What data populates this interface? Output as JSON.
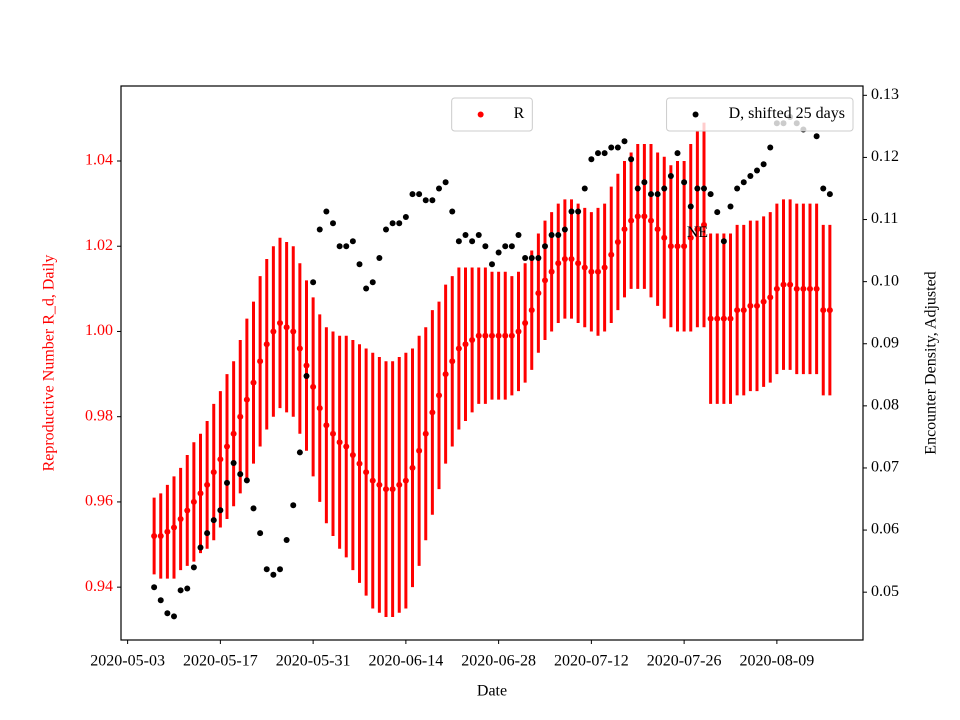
{
  "chart_data": {
    "type": "scatter",
    "x_label": "Date",
    "y_label": "Reproductive Number R_d, Daily",
    "y2_label": "Encounter Density, Adjusted",
    "y_label_color": "#ff0000",
    "annotation": "NE",
    "annotation_x": "2020-07-28",
    "annotation_y": 1.023,
    "xlim": [
      "2020-05-02",
      "2020-08-22"
    ],
    "xticks": [
      "2020-05-03",
      "2020-05-17",
      "2020-05-31",
      "2020-06-14",
      "2020-06-28",
      "2020-07-12",
      "2020-07-26",
      "2020-08-09"
    ],
    "ylim": [
      0.9276,
      1.0576
    ],
    "yticks": [
      0.94,
      0.96,
      0.98,
      {
        "value": 1.0,
        "label": "1.00"
      },
      1.02,
      1.04
    ],
    "y2lim": [
      0.0423,
      0.1315
    ],
    "y2ticks": [
      0.05,
      0.06,
      0.07,
      0.08,
      0.09,
      {
        "value": 0.1,
        "label": "0.10"
      },
      0.11,
      0.12,
      0.13
    ],
    "x": [
      "2020-05-07",
      "2020-05-08",
      "2020-05-09",
      "2020-05-10",
      "2020-05-11",
      "2020-05-12",
      "2020-05-13",
      "2020-05-14",
      "2020-05-15",
      "2020-05-16",
      "2020-05-17",
      "2020-05-18",
      "2020-05-19",
      "2020-05-20",
      "2020-05-21",
      "2020-05-22",
      "2020-05-23",
      "2020-05-24",
      "2020-05-25",
      "2020-05-26",
      "2020-05-27",
      "2020-05-28",
      "2020-05-29",
      "2020-05-30",
      "2020-05-31",
      "2020-06-01",
      "2020-06-02",
      "2020-06-03",
      "2020-06-04",
      "2020-06-05",
      "2020-06-06",
      "2020-06-07",
      "2020-06-08",
      "2020-06-09",
      "2020-06-10",
      "2020-06-11",
      "2020-06-12",
      "2020-06-13",
      "2020-06-14",
      "2020-06-15",
      "2020-06-16",
      "2020-06-17",
      "2020-06-18",
      "2020-06-19",
      "2020-06-20",
      "2020-06-21",
      "2020-06-22",
      "2020-06-23",
      "2020-06-24",
      "2020-06-25",
      "2020-06-26",
      "2020-06-27",
      "2020-06-28",
      "2020-06-29",
      "2020-06-30",
      "2020-07-01",
      "2020-07-02",
      "2020-07-03",
      "2020-07-04",
      "2020-07-05",
      "2020-07-06",
      "2020-07-07",
      "2020-07-08",
      "2020-07-09",
      "2020-07-10",
      "2020-07-11",
      "2020-07-12",
      "2020-07-13",
      "2020-07-14",
      "2020-07-15",
      "2020-07-16",
      "2020-07-17",
      "2020-07-18",
      "2020-07-19",
      "2020-07-20",
      "2020-07-21",
      "2020-07-22",
      "2020-07-23",
      "2020-07-24",
      "2020-07-25",
      "2020-07-26",
      "2020-07-27",
      "2020-07-28",
      "2020-07-29",
      "2020-07-30",
      "2020-07-31",
      "2020-08-01",
      "2020-08-02",
      "2020-08-03",
      "2020-08-04",
      "2020-08-05",
      "2020-08-06",
      "2020-08-07",
      "2020-08-08",
      "2020-08-09",
      "2020-08-10",
      "2020-08-11",
      "2020-08-12",
      "2020-08-13",
      "2020-08-14",
      "2020-08-15",
      "2020-08-16",
      "2020-08-17"
    ],
    "series": [
      {
        "name": "R",
        "color": "#ff0000",
        "legend_loc": "upper center",
        "values": [
          0.952,
          0.952,
          0.953,
          0.954,
          0.956,
          0.958,
          0.96,
          0.962,
          0.964,
          0.967,
          0.97,
          0.973,
          0.976,
          0.98,
          0.984,
          0.988,
          0.993,
          0.997,
          1.0,
          1.002,
          1.001,
          1.0,
          0.996,
          0.992,
          0.987,
          0.982,
          0.978,
          0.976,
          0.974,
          0.973,
          0.971,
          0.969,
          0.967,
          0.965,
          0.964,
          0.963,
          0.963,
          0.964,
          0.965,
          0.968,
          0.972,
          0.976,
          0.981,
          0.985,
          0.99,
          0.993,
          0.996,
          0.997,
          0.998,
          0.999,
          0.999,
          0.999,
          0.999,
          0.999,
          0.999,
          1.0,
          1.002,
          1.005,
          1.009,
          1.012,
          1.014,
          1.016,
          1.017,
          1.017,
          1.016,
          1.015,
          1.014,
          1.014,
          1.015,
          1.018,
          1.021,
          1.024,
          1.026,
          1.027,
          1.027,
          1.026,
          1.024,
          1.022,
          1.02,
          1.02,
          1.02,
          1.022,
          1.024,
          1.025,
          1.003,
          1.003,
          1.003,
          1.003,
          1.005,
          1.005,
          1.006,
          1.006,
          1.007,
          1.008,
          1.01,
          1.011,
          1.011,
          1.01,
          1.01,
          1.01,
          1.01,
          1.005,
          1.005
        ],
        "errors": [
          0.009,
          0.01,
          0.011,
          0.012,
          0.012,
          0.013,
          0.014,
          0.014,
          0.015,
          0.016,
          0.016,
          0.017,
          0.017,
          0.018,
          0.019,
          0.019,
          0.02,
          0.02,
          0.02,
          0.02,
          0.02,
          0.02,
          0.02,
          0.02,
          0.021,
          0.022,
          0.023,
          0.024,
          0.025,
          0.026,
          0.027,
          0.028,
          0.029,
          0.03,
          0.03,
          0.03,
          0.03,
          0.03,
          0.03,
          0.028,
          0.027,
          0.025,
          0.024,
          0.022,
          0.021,
          0.02,
          0.019,
          0.018,
          0.017,
          0.016,
          0.016,
          0.015,
          0.015,
          0.015,
          0.014,
          0.014,
          0.014,
          0.014,
          0.014,
          0.014,
          0.014,
          0.014,
          0.014,
          0.014,
          0.014,
          0.014,
          0.014,
          0.015,
          0.015,
          0.016,
          0.016,
          0.016,
          0.016,
          0.017,
          0.017,
          0.018,
          0.018,
          0.019,
          0.019,
          0.02,
          0.02,
          0.022,
          0.023,
          0.024,
          0.02,
          0.02,
          0.02,
          0.02,
          0.02,
          0.02,
          0.02,
          0.02,
          0.02,
          0.02,
          0.02,
          0.02,
          0.02,
          0.02,
          0.02,
          0.02,
          0.02,
          0.02,
          0.02
        ]
      },
      {
        "name": "D, shifted 25 days",
        "color": "#000000",
        "axis": "y2",
        "legend_loc": "upper right",
        "values": [
          0.0508,
          0.0487,
          0.0466,
          0.0461,
          0.0503,
          0.0506,
          0.054,
          0.0572,
          0.0595,
          0.0616,
          0.0632,
          0.0676,
          0.0708,
          0.069,
          0.068,
          0.0635,
          0.0595,
          0.0537,
          0.0528,
          0.0537,
          0.0584,
          0.064,
          0.0725,
          0.0848,
          0.0999,
          0.1084,
          0.1113,
          0.1094,
          0.1057,
          0.1057,
          0.1065,
          0.1028,
          0.0989,
          0.0999,
          0.1038,
          0.1084,
          0.1094,
          0.1094,
          0.1104,
          0.1141,
          0.1141,
          0.1131,
          0.1131,
          0.115,
          0.116,
          0.1113,
          0.1065,
          0.1075,
          0.1065,
          0.1075,
          0.1057,
          0.1028,
          0.1047,
          0.1057,
          0.1057,
          0.1075,
          0.1038,
          0.1038,
          0.1038,
          0.1057,
          0.1075,
          0.1075,
          0.1084,
          0.1113,
          0.1113,
          0.115,
          0.1197,
          0.1207,
          0.1207,
          0.1216,
          0.1216,
          0.1226,
          0.1197,
          0.115,
          0.116,
          0.1141,
          0.1141,
          0.115,
          0.117,
          0.1207,
          0.116,
          0.1121,
          0.115,
          0.115,
          0.1141,
          0.1112,
          0.1065,
          0.1121,
          0.115,
          0.116,
          0.117,
          0.1179,
          0.1189,
          0.1216,
          0.1255,
          0.1255,
          0.1265,
          0.1255,
          0.1245,
          null,
          0.1234,
          0.115,
          0.1141
        ]
      }
    ]
  }
}
